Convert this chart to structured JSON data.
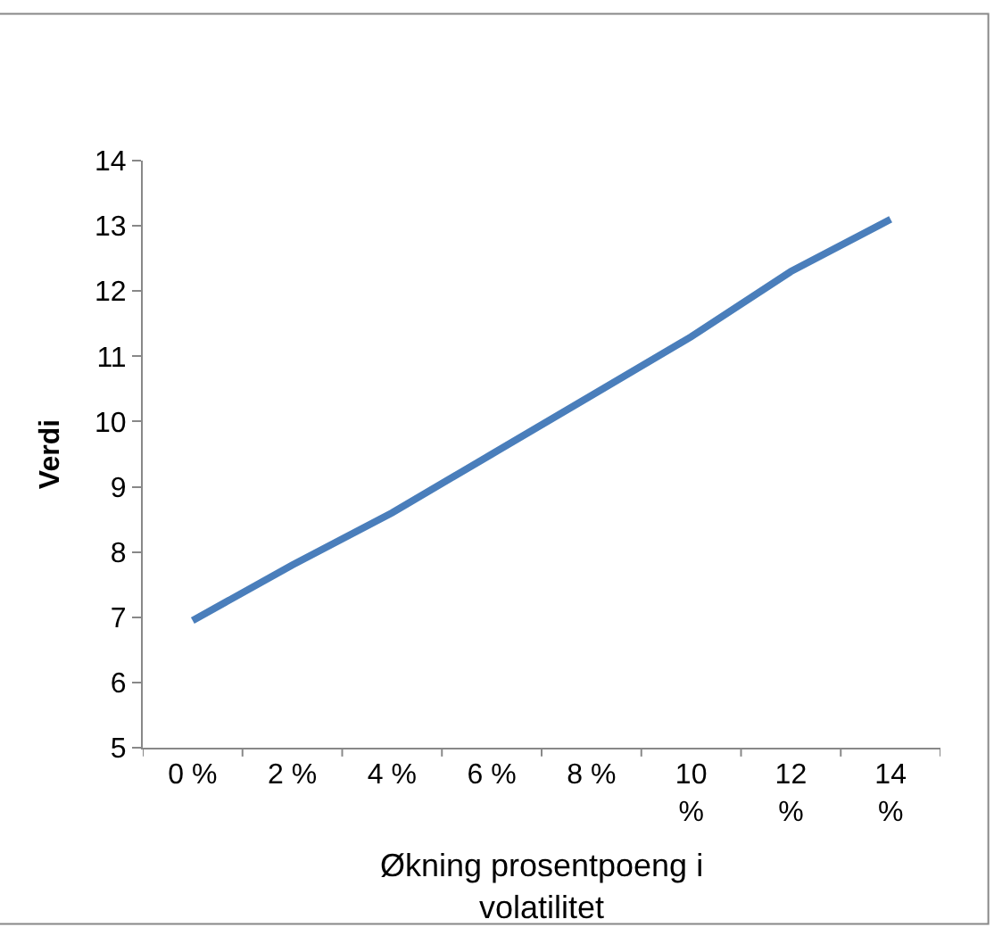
{
  "chart_data": {
    "type": "line",
    "xlabel": "Økning prosentpoeng i volatilitet",
    "ylabel": "Verdi",
    "categories": [
      "0 %",
      "2 %",
      "4 %",
      "6 %",
      "8 %",
      "10 %",
      "12 %",
      "14 %"
    ],
    "series": [
      {
        "color": "#4a7ebb",
        "values": [
          6.95,
          7.8,
          8.6,
          9.5,
          10.4,
          11.3,
          12.3,
          13.1
        ]
      }
    ],
    "ylim": [
      5,
      14
    ],
    "yticks": [
      5,
      6,
      7,
      8,
      9,
      10,
      11,
      12,
      13,
      14
    ],
    "legend": false,
    "marker": "none",
    "line_style": "solid"
  }
}
